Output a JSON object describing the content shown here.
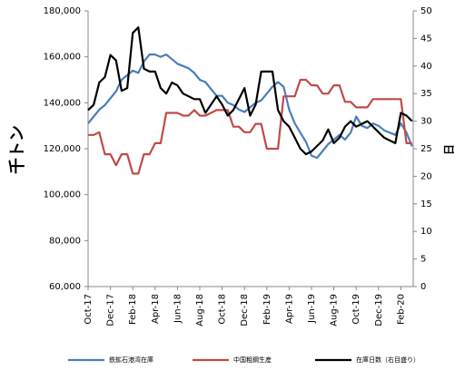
{
  "chart_data": {
    "type": "line",
    "y_label": "千トン",
    "y2_label": "日",
    "categories": [
      "Oct-17",
      null,
      null,
      null,
      "Dec-17",
      null,
      null,
      null,
      "Feb-18",
      null,
      null,
      null,
      "Apr-18",
      null,
      null,
      null,
      "Jun-18",
      null,
      null,
      null,
      "Aug-18",
      null,
      null,
      null,
      "Oct-18",
      null,
      null,
      null,
      "Dec-18",
      null,
      null,
      null,
      "Feb-19",
      null,
      null,
      null,
      "Apr-19",
      null,
      null,
      null,
      "Jun-19",
      null,
      null,
      null,
      "Aug-19",
      null,
      null,
      null,
      "Oct-19",
      null,
      null,
      null,
      "Dec-19",
      null,
      null,
      null,
      "Feb-20",
      null,
      null
    ],
    "series": [
      {
        "name": "鉄鉱石港湾在庫",
        "color": "#4a7ebb",
        "axis": "y",
        "values": [
          131000,
          134000,
          137000,
          139000,
          142000,
          145000,
          150000,
          152000,
          154000,
          153000,
          158000,
          161000,
          161000,
          160000,
          161000,
          159000,
          157000,
          156000,
          155000,
          153000,
          150000,
          149000,
          146000,
          143000,
          143000,
          140000,
          139000,
          137000,
          136000,
          138000,
          140000,
          141000,
          144000,
          147000,
          149000,
          147000,
          137000,
          131000,
          127000,
          123000,
          117000,
          116000,
          119000,
          122000,
          124000,
          126000,
          124000,
          127000,
          134000,
          130000,
          129000,
          131000,
          130000,
          128000,
          127000,
          126000,
          131000,
          127000,
          121000
        ]
      },
      {
        "name": "中国粗鋼生産",
        "color": "#be4b48",
        "axis": "y2",
        "values": [
          27.5,
          27.5,
          28,
          24,
          24,
          22,
          24,
          24,
          20.5,
          20.5,
          24,
          24,
          26,
          26,
          31.5,
          31.5,
          31.5,
          31,
          31,
          32,
          31,
          31,
          31.5,
          32,
          32,
          32,
          29,
          29,
          28,
          28,
          29.5,
          29.5,
          25,
          25,
          25,
          34.5,
          34.5,
          34.5,
          37.5,
          37.5,
          36.5,
          36.5,
          35,
          35,
          36.5,
          36.5,
          33.5,
          33.5,
          32.5,
          32.5,
          32.5,
          34,
          34,
          34,
          34,
          34,
          34,
          26,
          26
        ]
      },
      {
        "name": "在庫日数（右目盛り）",
        "color": "#000000",
        "axis": "y2",
        "values": [
          32,
          33,
          37,
          38,
          42,
          41,
          35.5,
          36,
          46,
          47,
          39.5,
          39,
          39,
          36,
          35,
          37,
          36.5,
          35,
          34.5,
          34,
          34,
          31.5,
          33,
          34.5,
          33,
          31,
          32,
          34,
          36,
          31,
          33,
          39,
          39,
          39,
          32,
          30,
          29,
          27,
          25,
          24,
          24.5,
          25.5,
          26.5,
          28.5,
          26,
          27,
          29,
          30,
          29,
          29.5,
          30,
          29,
          28,
          27,
          26.5,
          26,
          31.5,
          31,
          30
        ]
      }
    ],
    "ylim": [
      60000,
      180000
    ],
    "yticks": [
      {
        "value": 60000,
        "label": "60,000"
      },
      {
        "value": 80000,
        "label": "80,000"
      },
      {
        "value": 100000,
        "label": "100,000"
      },
      {
        "value": 120000,
        "label": "120,000"
      },
      {
        "value": 140000,
        "label": "140,000"
      },
      {
        "value": 160000,
        "label": "160,000"
      },
      {
        "value": 180000,
        "label": "180,000"
      }
    ],
    "y2lim": [
      0,
      50
    ],
    "y2ticks": [
      0,
      5,
      10,
      15,
      20,
      25,
      30,
      35,
      40,
      45,
      50
    ],
    "grid": false
  }
}
